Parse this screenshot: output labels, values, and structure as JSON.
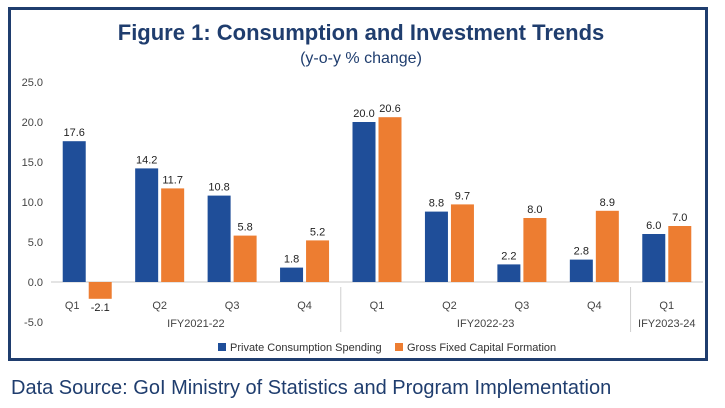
{
  "chart_data": {
    "type": "bar",
    "title": "Figure 1: Consumption and Investment Trends",
    "subtitle": "(y-o-y % change)",
    "ylim": [
      -5,
      25
    ],
    "yticks": [
      "25.0",
      "20.0",
      "15.0",
      "10.0",
      "5.0",
      "0.0",
      "-5.0"
    ],
    "categories": [
      "Q1",
      "Q2",
      "Q3",
      "Q4",
      "Q1",
      "Q2",
      "Q3",
      "Q4",
      "Q1"
    ],
    "groups": [
      {
        "label": "IFY2021-22",
        "count": 4
      },
      {
        "label": "IFY2022-23",
        "count": 4
      },
      {
        "label": "IFY2023-24",
        "count": 1
      }
    ],
    "series": [
      {
        "name": "Private Consumption Spending",
        "color": "#1f4e99",
        "values": [
          17.6,
          14.2,
          10.8,
          1.8,
          20.0,
          8.8,
          2.2,
          2.8,
          6.0
        ]
      },
      {
        "name": "Gross Fixed Capital Formation",
        "color": "#ed7d31",
        "values": [
          -2.1,
          11.7,
          5.8,
          5.2,
          20.6,
          9.7,
          8.0,
          8.9,
          7.0
        ]
      }
    ],
    "grid": false,
    "legend": "bottom"
  },
  "footer": {
    "source": "Data Source:  GoI Ministry of Statistics and Program Implementation"
  },
  "colors": {
    "frame": "#1f3d6e",
    "title": "#1f3d6e"
  }
}
